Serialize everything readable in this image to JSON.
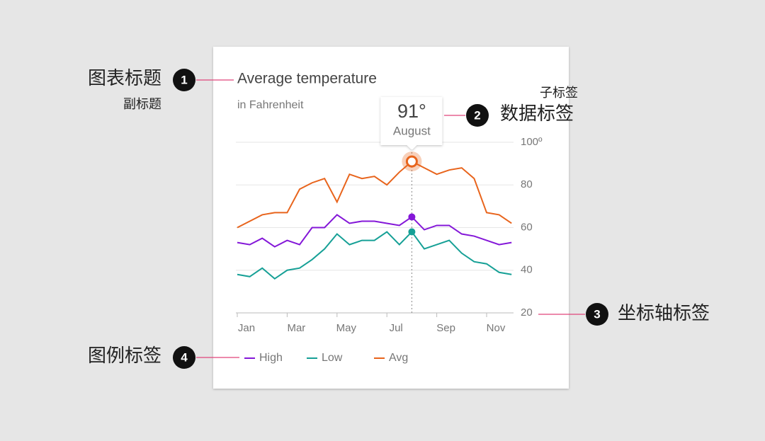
{
  "chart_data": {
    "type": "line",
    "title": "Average temperature",
    "subtitle": "in Fahrenheit",
    "categories": [
      "Jan",
      null,
      null,
      null,
      "Mar",
      null,
      null,
      null,
      "May",
      null,
      null,
      null,
      "Jul",
      null,
      null,
      null,
      "Sep",
      null,
      null,
      null,
      "Nov",
      null,
      null
    ],
    "series": [
      {
        "name": "High",
        "color": "#8417d8",
        "values": [
          53,
          52,
          55,
          51,
          54,
          52,
          60,
          60,
          66,
          62,
          63,
          63,
          62,
          61,
          65,
          59,
          61,
          61,
          57,
          56,
          54,
          52,
          53
        ]
      },
      {
        "name": "Low",
        "color": "#16a096",
        "values": [
          38,
          37,
          41,
          36,
          40,
          41,
          45,
          50,
          57,
          52,
          54,
          54,
          58,
          52,
          58,
          50,
          52,
          54,
          48,
          44,
          43,
          39,
          38
        ]
      },
      {
        "name": "Avg",
        "color": "#e8641c",
        "values": [
          60,
          63,
          66,
          67,
          67,
          78,
          81,
          83,
          72,
          85,
          83,
          84,
          80,
          86,
          91,
          88,
          85,
          87,
          88,
          83,
          67,
          66,
          62
        ],
        "value_labels": [
          null,
          null,
          null,
          null,
          null,
          null,
          null,
          null,
          null,
          null,
          null,
          null,
          null,
          null,
          "91°",
          null,
          null,
          null,
          null,
          null,
          null,
          null,
          null
        ]
      }
    ],
    "tooltip_detail": "August",
    "ylim": [
      20,
      100
    ],
    "yticks": [
      20,
      40,
      60,
      80,
      {
        "value": 100,
        "label": "100º"
      }
    ],
    "grid": true
  },
  "annotations": [
    {
      "number": 1,
      "label": "图表标题",
      "sublabel": "副标题"
    },
    {
      "number": 2,
      "label": "数据标签",
      "sublabel": "子标签"
    },
    {
      "number": 3,
      "label": "坐标轴标签"
    },
    {
      "number": 4,
      "label": "图例标签"
    }
  ]
}
